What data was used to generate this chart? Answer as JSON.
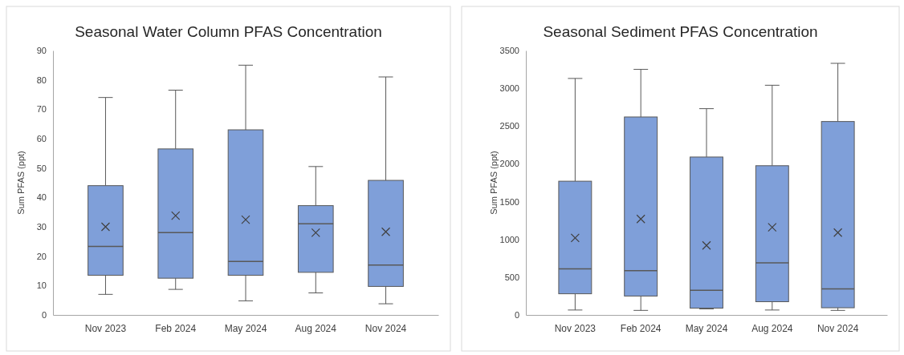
{
  "chart_data": [
    {
      "type": "box",
      "title": "Seasonal Water Column PFAS Concentration",
      "ylabel": "Sum PFAS (ppt)",
      "categories": [
        "Nov 2023",
        "Feb 2024",
        "May 2024",
        "Aug 2024",
        "Nov 2024"
      ],
      "color": "#7f9fd9",
      "ylim": [
        0,
        90
      ],
      "yticks": [
        0,
        10,
        20,
        30,
        40,
        50,
        60,
        70,
        80,
        90
      ],
      "boxes": [
        {
          "low": 7,
          "q1": 13.5,
          "median": 23.3,
          "q3": 44,
          "high": 74,
          "mean": 30
        },
        {
          "low": 8.7,
          "q1": 12.5,
          "median": 28,
          "q3": 56.5,
          "high": 76.5,
          "mean": 33.8
        },
        {
          "low": 4.8,
          "q1": 13.5,
          "median": 18.2,
          "q3": 63,
          "high": 85,
          "mean": 32.4
        },
        {
          "low": 7.5,
          "q1": 14.5,
          "median": 31,
          "q3": 37.2,
          "high": 50.5,
          "mean": 28
        },
        {
          "low": 3.8,
          "q1": 9.7,
          "median": 17,
          "q3": 45.8,
          "high": 81,
          "mean": 28.3
        }
      ]
    },
    {
      "type": "box",
      "title": "Seasonal Sediment PFAS Concentration",
      "ylabel": "Sum PFAS (ppt)",
      "categories": [
        "Nov 2023",
        "Feb 2024",
        "May 2024",
        "Aug 2024",
        "Nov 2024"
      ],
      "color": "#7f9fd9",
      "ylim": [
        0,
        3500
      ],
      "yticks": [
        0,
        500,
        1000,
        1500,
        2000,
        2500,
        3000,
        3500
      ],
      "boxes": [
        {
          "low": 65,
          "q1": 280,
          "median": 610,
          "q3": 1770,
          "high": 3130,
          "mean": 1020
        },
        {
          "low": 60,
          "q1": 250,
          "median": 585,
          "q3": 2620,
          "high": 3250,
          "mean": 1270
        },
        {
          "low": 80,
          "q1": 90,
          "median": 325,
          "q3": 2090,
          "high": 2730,
          "mean": 920
        },
        {
          "low": 65,
          "q1": 175,
          "median": 690,
          "q3": 1975,
          "high": 3040,
          "mean": 1160
        },
        {
          "low": 60,
          "q1": 95,
          "median": 345,
          "q3": 2560,
          "high": 3330,
          "mean": 1090
        }
      ]
    }
  ]
}
